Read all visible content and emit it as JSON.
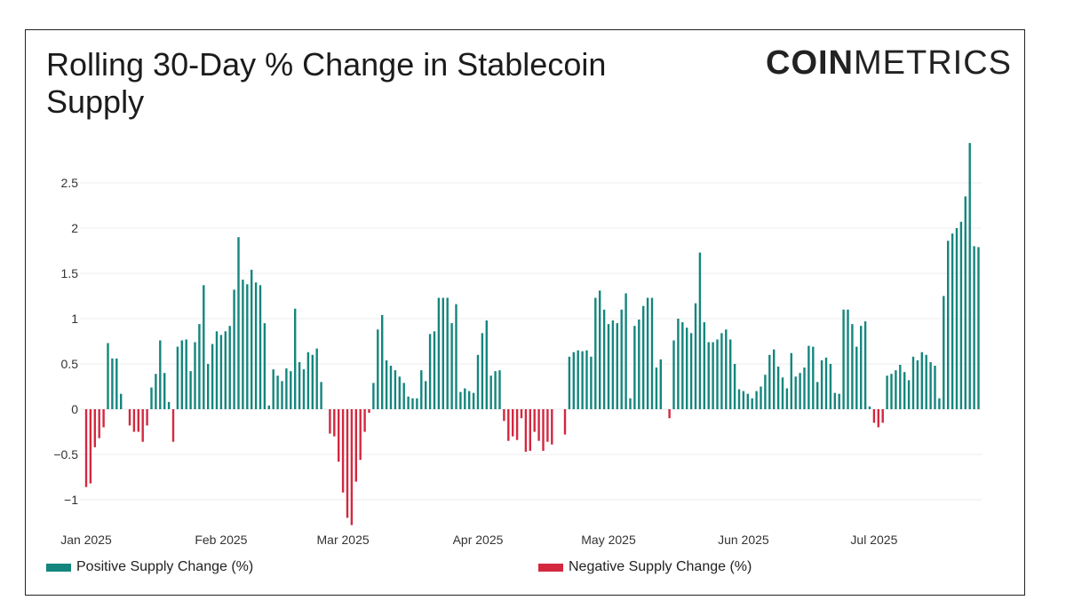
{
  "logo": {
    "bold": "COIN",
    "light": "METRICS"
  },
  "colors": {
    "positive": "#14867d",
    "negative": "#d3283f",
    "grid": "#eeeeee"
  },
  "chart_data": {
    "type": "bar",
    "title": "Rolling 30-Day % Change in Stablecoin Supply",
    "xlabel": "",
    "ylabel": "",
    "ylim": [
      -1.2,
      2.95
    ],
    "yticks": [
      -1,
      -0.5,
      0,
      0.5,
      1,
      1.5,
      2,
      2.5
    ],
    "ytick_labels": [
      "−1",
      "−0.5",
      "0",
      "0.5",
      "1",
      "1.5",
      "2",
      "2.5"
    ],
    "xtick_labels": [
      "Jan 2025",
      "Feb 2025",
      "Mar 2025",
      "Apr 2025",
      "May 2025",
      "Jun 2025",
      "Jul 2025"
    ],
    "grid": true,
    "legend_placement": "bottom",
    "series": [
      {
        "name": "Positive Supply Change (%)",
        "color": "#14867d"
      },
      {
        "name": "Negative Supply Change (%)",
        "color": "#d3283f"
      }
    ],
    "daily_values_by_month": [
      {
        "month": "Jan 2025",
        "values": [
          -0.86,
          -0.82,
          -0.42,
          -0.32,
          -0.2,
          0.73,
          0.56,
          0.56,
          0.17,
          0,
          -0.18,
          -0.25,
          -0.25,
          -0.36,
          -0.18,
          0.24,
          0.39,
          0.76,
          0.4,
          0.08,
          -0.36,
          0.69,
          0.76,
          0.77,
          0.42,
          0.74,
          0.94,
          1.37,
          0.5,
          0.72,
          0.86
        ]
      },
      {
        "month": "Feb 2025",
        "values": [
          0.82,
          0.86,
          0.92,
          1.32,
          1.9,
          1.43,
          1.38,
          1.54,
          1.4,
          1.37,
          0.95,
          0.04,
          0.44,
          0.37,
          0.31,
          0.45,
          0.42,
          1.11,
          0.52,
          0.44,
          0.63,
          0.6,
          0.67,
          0.3,
          0,
          -0.27,
          -0.3,
          -0.58
        ]
      },
      {
        "month": "Mar 2025",
        "values": [
          -0.92,
          -1.2,
          -1.28,
          -0.8,
          -0.56,
          -0.25,
          -0.04,
          0.29,
          0.88,
          1.04,
          0.54,
          0.48,
          0.43,
          0.36,
          0.29,
          0.14,
          0.12,
          0.12,
          0.43,
          0.31,
          0.83,
          0.86,
          1.23,
          1.23,
          1.23,
          0.95,
          1.16,
          0.19,
          0.23,
          0.2,
          0.18
        ]
      },
      {
        "month": "Apr 2025",
        "values": [
          0.6,
          0.84,
          0.98,
          0.37,
          0.42,
          0.43,
          -0.13,
          -0.35,
          -0.3,
          -0.34,
          -0.1,
          -0.47,
          -0.46,
          -0.25,
          -0.35,
          -0.46,
          -0.36,
          -0.39,
          0,
          0,
          -0.28,
          0.58,
          0.63,
          0.65,
          0.64,
          0.65,
          0.58,
          1.23,
          1.31,
          1.1
        ]
      },
      {
        "month": "May 2025",
        "values": [
          0.94,
          0.98,
          0.95,
          1.1,
          1.28,
          0.12,
          0.92,
          0.99,
          1.14,
          1.23,
          1.23,
          0.46,
          0.55,
          0,
          -0.1,
          0.76,
          1.0,
          0.96,
          0.9,
          0.84,
          1.17,
          1.73,
          0.96,
          0.74,
          0.74,
          0.77,
          0.84,
          0.88,
          0.77,
          0.5,
          0.22
        ]
      },
      {
        "month": "Jun 2025",
        "values": [
          0.2,
          0.17,
          0.12,
          0.2,
          0.25,
          0.38,
          0.6,
          0.66,
          0.47,
          0.35,
          0.23,
          0.62,
          0.36,
          0.4,
          0.46,
          0.7,
          0.69,
          0.3,
          0.54,
          0.57,
          0.5,
          0.18,
          0.17,
          1.1,
          1.1,
          0.94,
          0.69,
          0.92,
          0.97,
          0.03
        ]
      },
      {
        "month": "Jul 2025",
        "values": [
          -0.15,
          -0.2,
          -0.15,
          0.37,
          0.39,
          0.43,
          0.49,
          0.41,
          0.32,
          0.58,
          0.54,
          0.63,
          0.6,
          0.52,
          0.48,
          0.12,
          1.25,
          1.86,
          1.94,
          2.0,
          2.07,
          2.35,
          2.94,
          1.8,
          1.79
        ]
      }
    ]
  }
}
